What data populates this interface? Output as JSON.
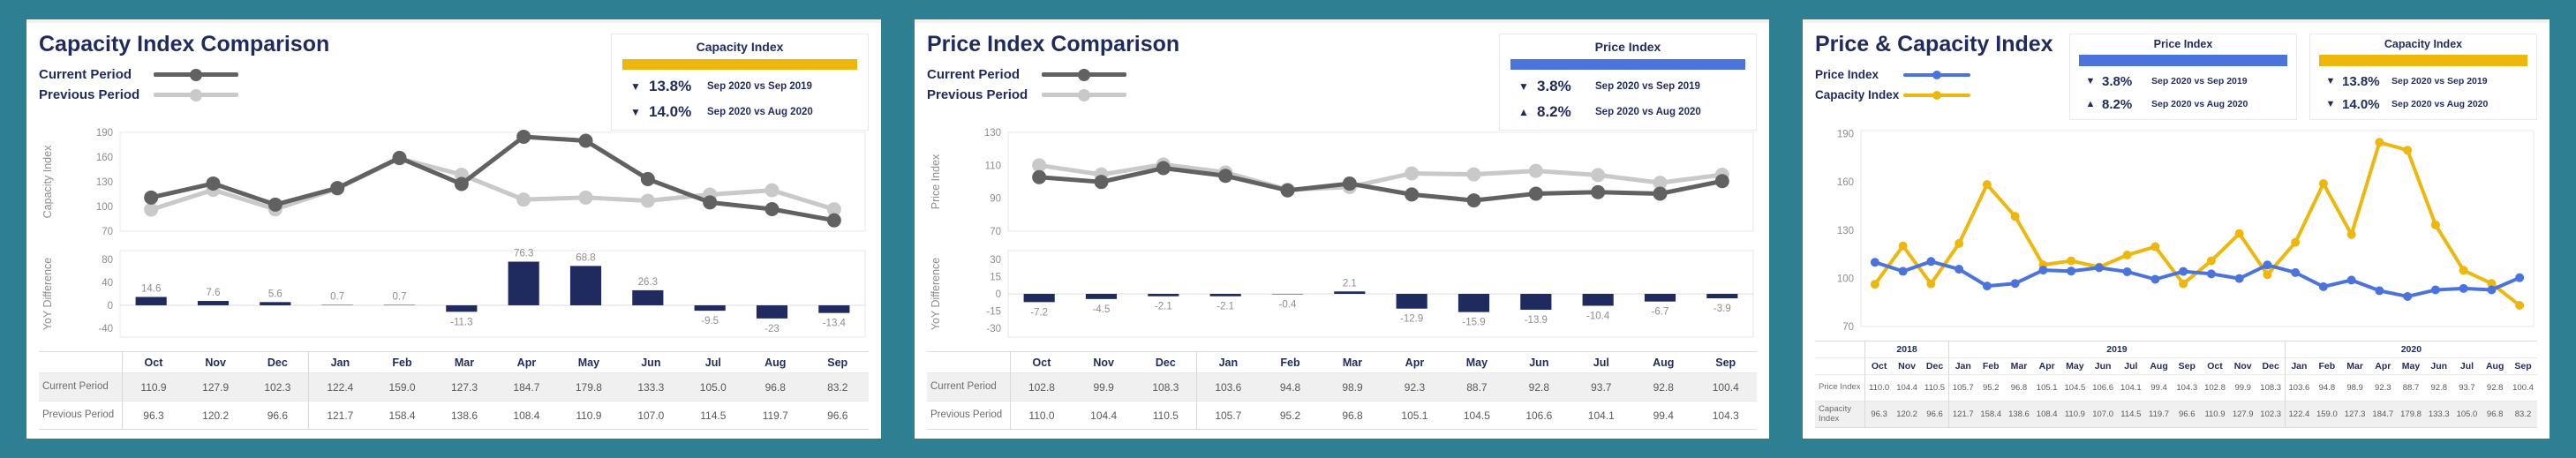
{
  "background": "#2E7F92",
  "panels": [
    {
      "title": "Capacity Index Comparison",
      "legend": [
        {
          "label": "Current Period",
          "color": "#616161"
        },
        {
          "label": "Previous Period",
          "color": "#c9c9c9"
        }
      ],
      "kpis": [
        {
          "title": "Capacity Index",
          "accent": "#EDB70E",
          "rows": [
            {
              "direction": "down",
              "value": "13.8%",
              "caption": "Sep 2020 vs Sep 2019"
            },
            {
              "direction": "down",
              "value": "14.0%",
              "caption": "Sep 2020 vs Aug 2020"
            }
          ]
        }
      ]
    },
    {
      "title": "Price Index Comparison",
      "legend": [
        {
          "label": "Current Period",
          "color": "#616161"
        },
        {
          "label": "Previous Period",
          "color": "#c9c9c9"
        }
      ],
      "kpis": [
        {
          "title": "Price Index",
          "accent": "#4A74DC",
          "rows": [
            {
              "direction": "down",
              "value": "3.8%",
              "caption": "Sep 2020 vs Sep 2019"
            },
            {
              "direction": "up",
              "value": "8.2%",
              "caption": "Sep 2020 vs Aug 2020"
            }
          ]
        }
      ]
    },
    {
      "title": "Price & Capacity Index",
      "legend": [
        {
          "label": "Price Index",
          "color": "#4A74DC"
        },
        {
          "label": "Capacity Index",
          "color": "#EDB70E"
        }
      ],
      "kpis": [
        {
          "title": "Price Index",
          "accent": "#4A74DC",
          "rows": [
            {
              "direction": "down",
              "value": "3.8%",
              "caption": "Sep 2020 vs Sep 2019"
            },
            {
              "direction": "up",
              "value": "8.2%",
              "caption": "Sep 2020 vs Aug 2020"
            }
          ]
        },
        {
          "title": "Capacity Index",
          "accent": "#EDB70E",
          "rows": [
            {
              "direction": "down",
              "value": "13.8%",
              "caption": "Sep 2020 vs Sep 2019"
            },
            {
              "direction": "down",
              "value": "14.0%",
              "caption": "Sep 2020 vs Aug 2020"
            }
          ]
        }
      ]
    }
  ],
  "chart_data": [
    {
      "type": "line",
      "title": "Capacity Index Comparison",
      "ylabel": "Capacity Index",
      "categories": [
        "Oct",
        "Nov",
        "Dec",
        "Jan",
        "Feb",
        "Mar",
        "Apr",
        "May",
        "Jun",
        "Jul",
        "Aug",
        "Sep"
      ],
      "ylim": [
        70,
        190
      ],
      "yticks": [
        190,
        160,
        130,
        100,
        70
      ],
      "series": [
        {
          "name": "Current Period",
          "color": "#616161",
          "values": [
            110.9,
            127.9,
            102.3,
            122.4,
            159.0,
            127.3,
            184.7,
            179.8,
            133.3,
            105.0,
            96.8,
            83.2
          ]
        },
        {
          "name": "Previous Period",
          "color": "#c9c9c9",
          "values": [
            96.3,
            120.2,
            96.6,
            121.7,
            158.4,
            138.6,
            108.4,
            110.9,
            107.0,
            114.5,
            119.7,
            96.6
          ]
        }
      ]
    },
    {
      "type": "bar",
      "title": "Capacity Index YoY Difference",
      "ylabel": "YoY Difference",
      "categories": [
        "Oct",
        "Nov",
        "Dec",
        "Jan",
        "Feb",
        "Mar",
        "Apr",
        "May",
        "Jun",
        "Jul",
        "Aug",
        "Sep"
      ],
      "ylim": [
        -40,
        80
      ],
      "yticks": [
        80,
        40,
        0,
        -40
      ],
      "color": "#1F2B5E",
      "values": [
        14.6,
        7.6,
        5.6,
        0.7,
        0.7,
        -11.3,
        76.3,
        68.8,
        26.3,
        -9.5,
        -23,
        -13.4
      ]
    },
    {
      "type": "line",
      "title": "Price Index Comparison",
      "ylabel": "Price Index",
      "categories": [
        "Oct",
        "Nov",
        "Dec",
        "Jan",
        "Feb",
        "Mar",
        "Apr",
        "May",
        "Jun",
        "Jul",
        "Aug",
        "Sep"
      ],
      "ylim": [
        70,
        130
      ],
      "yticks": [
        130,
        110,
        90,
        70
      ],
      "series": [
        {
          "name": "Current Period",
          "color": "#616161",
          "values": [
            102.8,
            99.9,
            108.3,
            103.6,
            94.8,
            98.9,
            92.3,
            88.7,
            92.8,
            93.7,
            92.8,
            100.4
          ]
        },
        {
          "name": "Previous Period",
          "color": "#c9c9c9",
          "values": [
            110.0,
            104.4,
            110.5,
            105.7,
            95.2,
            96.8,
            105.1,
            104.5,
            106.6,
            104.1,
            99.4,
            104.3
          ]
        }
      ]
    },
    {
      "type": "bar",
      "title": "Price Index YoY Difference",
      "ylabel": "YoY Difference",
      "categories": [
        "Oct",
        "Nov",
        "Dec",
        "Jan",
        "Feb",
        "Mar",
        "Apr",
        "May",
        "Jun",
        "Jul",
        "Aug",
        "Sep"
      ],
      "ylim": [
        -30,
        30
      ],
      "yticks": [
        30,
        15,
        0,
        -15,
        -30
      ],
      "color": "#1F2B5E",
      "values": [
        -7.2,
        -4.5,
        -2.1,
        -2.1,
        -0.4,
        2.1,
        -12.9,
        -15.9,
        -13.9,
        -10.4,
        -6.7,
        -3.9
      ]
    },
    {
      "type": "line",
      "title": "Price & Capacity Index",
      "categories": [
        "Oct",
        "Nov",
        "Dec",
        "Jan",
        "Feb",
        "Mar",
        "Apr",
        "May",
        "Jun",
        "Jul",
        "Aug",
        "Sep",
        "Oct",
        "Nov",
        "Dec",
        "Jan",
        "Feb",
        "Mar",
        "Apr",
        "May",
        "Jun",
        "Jul",
        "Aug",
        "Sep"
      ],
      "x_groups": [
        {
          "label": "2018",
          "span": 3
        },
        {
          "label": "2019",
          "span": 12
        },
        {
          "label": "2020",
          "span": 9
        }
      ],
      "ylim": [
        70,
        192
      ],
      "yticks": [
        190,
        160,
        130,
        100,
        70
      ],
      "series": [
        {
          "name": "Price Index",
          "color": "#4A74DC",
          "values": [
            110.0,
            104.4,
            110.5,
            105.7,
            95.2,
            96.8,
            105.1,
            104.5,
            106.6,
            104.1,
            99.4,
            104.3,
            102.8,
            99.9,
            108.3,
            103.6,
            94.8,
            98.9,
            92.3,
            88.7,
            92.8,
            93.7,
            92.8,
            100.4
          ]
        },
        {
          "name": "Capacity Index",
          "color": "#EDB70E",
          "values": [
            96.3,
            120.2,
            96.6,
            121.7,
            158.4,
            138.6,
            108.4,
            110.9,
            107.0,
            114.5,
            119.7,
            96.6,
            110.9,
            127.9,
            102.3,
            122.4,
            159.0,
            127.3,
            184.7,
            179.8,
            133.3,
            105.0,
            96.8,
            83.2
          ]
        }
      ]
    }
  ]
}
